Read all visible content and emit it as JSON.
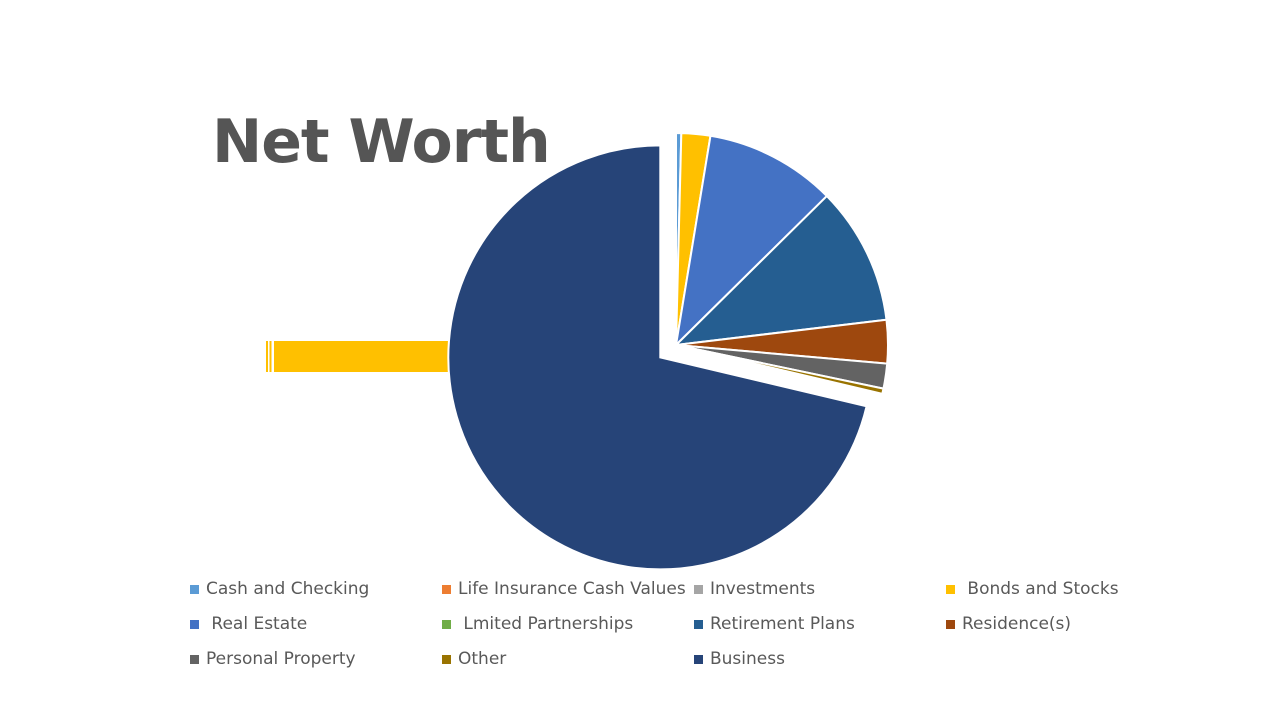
{
  "title": "Net Worth",
  "chart_data": {
    "type": "pie",
    "title": "Net Worth",
    "legend_position": "bottom",
    "exploded_slice": "Business",
    "slices": [
      {
        "label": "Cash and Checking",
        "value": 0.4,
        "color": "#5B9BD5"
      },
      {
        "label": "Life Insurance Cash Values",
        "value": 0,
        "color": "#ED7D31"
      },
      {
        "label": "Investments",
        "value": 0,
        "color": "#A5A5A5"
      },
      {
        "label": " Bonds and Stocks",
        "value": 2.2,
        "color": "#FFC000"
      },
      {
        "label": " Real Estate",
        "value": 10.0,
        "color": "#4472C4"
      },
      {
        "label": " Lmited Partnerships",
        "value": 0,
        "color": "#70AD47"
      },
      {
        "label": "Retirement Plans",
        "value": 10.5,
        "color": "#255E91"
      },
      {
        "label": "Residence(s)",
        "value": 3.3,
        "color": "#9E480E"
      },
      {
        "label": "Personal Property",
        "value": 1.9,
        "color": "#636363"
      },
      {
        "label": "Other",
        "value": 0.4,
        "color": "#997300"
      },
      {
        "label": "Business",
        "value": 71.3,
        "color": "#264478"
      }
    ]
  },
  "arrow": {
    "color": "#FFC000"
  }
}
